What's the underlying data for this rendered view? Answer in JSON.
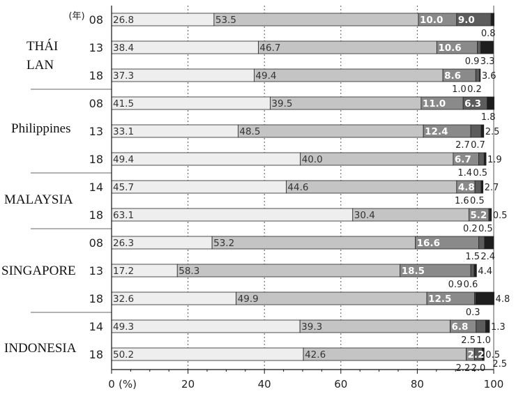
{
  "chart_data": {
    "type": "bar",
    "orientation": "horizontal",
    "stacked": true,
    "percent": true,
    "xlim": [
      0,
      100
    ],
    "x_ticks": [
      "0",
      "20",
      "40",
      "60",
      "80",
      "100"
    ],
    "x_unit": "(%)",
    "year_unit": "(年)",
    "grid": "dashed vertical",
    "segment_colors": [
      "#eeeeee",
      "#c4c4c4",
      "#8a8a8a",
      "#5c5c5c",
      "#1e1e1e"
    ],
    "groups": [
      {
        "country": "THÁI LAN",
        "rows": [
          {
            "year": "08",
            "values": [
              26.8,
              53.5,
              10.0,
              9.0,
              0.8
            ]
          },
          {
            "year": "13",
            "values": [
              38.4,
              46.7,
              10.6,
              0.9,
              3.3
            ]
          },
          {
            "year": "18",
            "values": [
              37.3,
              49.4,
              8.6,
              1.0,
              0.2
            ]
          }
        ]
      },
      {
        "country": "Philippines",
        "rows": [
          {
            "year": "08",
            "values": [
              41.5,
              39.5,
              11.0,
              6.3,
              1.8
            ]
          },
          {
            "year": "13",
            "values": [
              33.1,
              48.5,
              12.4,
              2.7,
              0.7
            ]
          },
          {
            "year": "18",
            "values": [
              49.4,
              40.0,
              6.7,
              1.4,
              0.5
            ]
          }
        ]
      },
      {
        "country": "MALAYSIA",
        "rows": [
          {
            "year": "14",
            "values": [
              45.7,
              44.6,
              4.8,
              1.6,
              0.5
            ]
          },
          {
            "year": "18",
            "values": [
              63.1,
              30.4,
              5.2,
              0.2,
              0.5
            ]
          }
        ]
      },
      {
        "country": "SINGAPORE",
        "rows": [
          {
            "year": "08",
            "values": [
              26.3,
              53.2,
              16.6,
              1.5,
              2.4
            ]
          },
          {
            "year": "13",
            "values": [
              17.2,
              58.3,
              18.5,
              0.9,
              0.6
            ]
          },
          {
            "year": "18",
            "values": [
              32.6,
              49.9,
              12.5,
              0.3,
              4.8
            ]
          }
        ]
      },
      {
        "country": "INDONESIA",
        "rows": [
          {
            "year": "14",
            "values": [
              49.3,
              39.3,
              6.8,
              2.5,
              1.0
            ]
          },
          {
            "year": "18",
            "values": [
              50.2,
              42.6,
              2.2,
              2.0,
              0.5
            ]
          }
        ]
      }
    ],
    "external_labels": [
      {
        "row": 0,
        "seg": 4,
        "text": "0.8"
      },
      {
        "row": 1,
        "seg": 3,
        "text": "0.9"
      },
      {
        "row": 1,
        "seg": 4,
        "text": "3.3"
      },
      {
        "row": 2,
        "seg": 3,
        "text": "1.0"
      },
      {
        "row": 2,
        "seg": 4,
        "text": "0.2"
      },
      {
        "row": 2,
        "seg": 5,
        "text": "3.6"
      },
      {
        "row": 3,
        "seg": 4,
        "text": "1.8"
      },
      {
        "row": 4,
        "seg": 3,
        "text": "2.7"
      },
      {
        "row": 4,
        "seg": 4,
        "text": "0.7"
      },
      {
        "row": 4,
        "seg": 5,
        "text": "2.5"
      },
      {
        "row": 5,
        "seg": 3,
        "text": "1.4"
      },
      {
        "row": 5,
        "seg": 4,
        "text": "0.5"
      },
      {
        "row": 5,
        "seg": 5,
        "text": "1.9"
      },
      {
        "row": 6,
        "seg": 3,
        "text": "1.6"
      },
      {
        "row": 6,
        "seg": 4,
        "text": "0.5"
      },
      {
        "row": 6,
        "seg": 5,
        "text": "2.7"
      },
      {
        "row": 7,
        "seg": 3,
        "text": "0.2"
      },
      {
        "row": 7,
        "seg": 4,
        "text": "0.5"
      },
      {
        "row": 7,
        "seg": 5,
        "text": "0.5"
      },
      {
        "row": 8,
        "seg": 3,
        "text": "1.5"
      },
      {
        "row": 8,
        "seg": 4,
        "text": "2.4"
      },
      {
        "row": 9,
        "seg": 3,
        "text": "0.9"
      },
      {
        "row": 9,
        "seg": 4,
        "text": "0.6"
      },
      {
        "row": 9,
        "seg": 5,
        "text": "4.4"
      },
      {
        "row": 10,
        "seg": 3,
        "text": "0.3"
      },
      {
        "row": 10,
        "seg": 5,
        "text": "4.8"
      },
      {
        "row": 11,
        "seg": 3,
        "text": "2.5"
      },
      {
        "row": 11,
        "seg": 4,
        "text": "1.0"
      },
      {
        "row": 11,
        "seg": 5,
        "text": "1.3"
      },
      {
        "row": 12,
        "seg": 3,
        "text": "2.2"
      },
      {
        "row": 12,
        "seg": 4,
        "text": "2.0"
      },
      {
        "row": 12,
        "seg": 5,
        "text": "0.5"
      },
      {
        "row": 12,
        "seg": 6,
        "text": "2.5"
      }
    ]
  }
}
